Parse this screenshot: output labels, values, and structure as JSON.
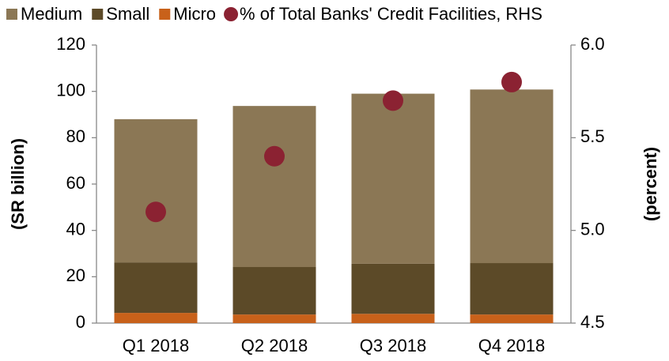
{
  "chart_data": {
    "type": "bar",
    "stacked": true,
    "categories": [
      "Q1 2018",
      "Q2 2018",
      "Q3 2018",
      "Q4 2018"
    ],
    "series": [
      {
        "name": "Medium",
        "color": "#8b7755",
        "values": [
          61.8,
          69.5,
          73.4,
          74.9
        ]
      },
      {
        "name": "Small",
        "color": "#5c4a28",
        "values": [
          21.8,
          20.5,
          21.6,
          22.2
        ]
      },
      {
        "name": "Micro",
        "color": "#c8611a",
        "values": [
          4.4,
          3.7,
          4.0,
          3.7
        ]
      },
      {
        "name": "% of Total Banks' Credit Facilities, RHS",
        "color": "#8b2232",
        "type": "scatter",
        "axis": "y2",
        "values": [
          5.1,
          5.4,
          5.7,
          5.8
        ]
      }
    ],
    "stack_order": [
      2,
      1,
      0
    ],
    "ylabel": "(SR billion)",
    "y2label": "(percent)",
    "ylim": [
      0,
      120
    ],
    "yticks": [
      0,
      20,
      40,
      60,
      80,
      100,
      120
    ],
    "y2lim": [
      4.5,
      6.0
    ],
    "y2ticks": [
      4.5,
      {
        "value": 5.0,
        "label": "5.0"
      },
      5.5,
      {
        "value": 6.0,
        "label": "6.0"
      }
    ]
  }
}
